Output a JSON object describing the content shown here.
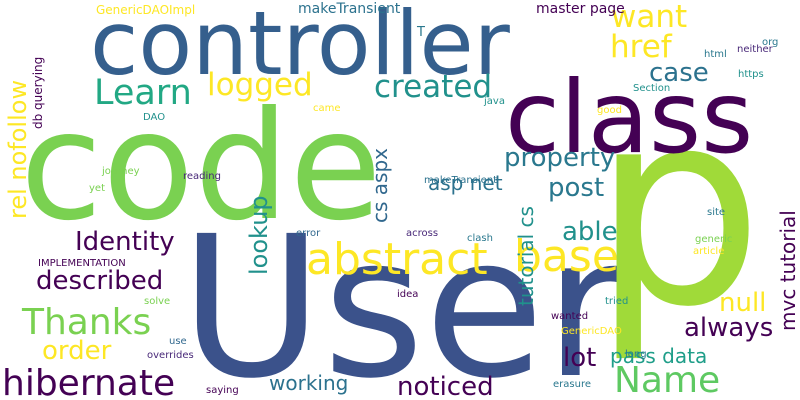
{
  "words": [
    {
      "text": "code",
      "color": "#7ad151",
      "vertical": false
    },
    {
      "text": "User",
      "color": "#3b528b",
      "vertical": false
    },
    {
      "text": "p",
      "color": "#a0da39",
      "vertical": false
    },
    {
      "text": "controller",
      "color": "#355f8d",
      "vertical": false
    },
    {
      "text": "class",
      "color": "#440154",
      "vertical": false
    },
    {
      "text": "abstract",
      "color": "#fde725",
      "vertical": false
    },
    {
      "text": "base",
      "color": "#fde725",
      "vertical": false
    },
    {
      "text": "hibernate",
      "color": "#440154",
      "vertical": false
    },
    {
      "text": "Name",
      "color": "#5ec962",
      "vertical": false
    },
    {
      "text": "Thanks",
      "color": "#7ad151",
      "vertical": false
    },
    {
      "text": "Learn",
      "color": "#22a884",
      "vertical": false
    },
    {
      "text": "logged",
      "color": "#fde725",
      "vertical": false
    },
    {
      "text": "created",
      "color": "#21918c",
      "vertical": false
    },
    {
      "text": "want",
      "color": "#fde725",
      "vertical": false
    },
    {
      "text": "href",
      "color": "#fde725",
      "vertical": false
    },
    {
      "text": "case",
      "color": "#2c728e",
      "vertical": false
    },
    {
      "text": "property",
      "color": "#2a788e",
      "vertical": false
    },
    {
      "text": "post",
      "color": "#2a788e",
      "vertical": false
    },
    {
      "text": "Identity",
      "color": "#440154",
      "vertical": false
    },
    {
      "text": "described",
      "color": "#440154",
      "vertical": false
    },
    {
      "text": "able",
      "color": "#21918c",
      "vertical": false
    },
    {
      "text": "noticed",
      "color": "#440154",
      "vertical": false
    },
    {
      "text": "always",
      "color": "#440154",
      "vertical": false
    },
    {
      "text": "order",
      "color": "#fde725",
      "vertical": false
    },
    {
      "text": "null",
      "color": "#fde725",
      "vertical": false
    },
    {
      "text": "lot",
      "color": "#440154",
      "vertical": false
    },
    {
      "text": "working",
      "color": "#2c728e",
      "vertical": false
    },
    {
      "text": "asp net",
      "color": "#2c728e",
      "vertical": false
    },
    {
      "text": "pass data",
      "color": "#1f9e89",
      "vertical": false
    },
    {
      "text": "rel nofollow",
      "color": "#fde725",
      "vertical": true
    },
    {
      "text": "lookup",
      "color": "#21918c",
      "vertical": true
    },
    {
      "text": "cs aspx",
      "color": "#31688e",
      "vertical": true
    },
    {
      "text": "tutorial cs",
      "color": "#21918c",
      "vertical": true
    },
    {
      "text": "mvc tutorial",
      "color": "#440154",
      "vertical": true
    },
    {
      "text": "db querying",
      "color": "#440154",
      "vertical": true
    },
    {
      "text": "makeTransient",
      "color": "#2c728e",
      "vertical": false
    },
    {
      "text": "master page",
      "color": "#440154",
      "vertical": false
    },
    {
      "text": "GenericDAOImpl",
      "color": "#fde725",
      "vertical": false
    },
    {
      "text": "T",
      "color": "#2a788e",
      "vertical": false
    },
    {
      "text": "org",
      "color": "#2a788e",
      "vertical": false
    },
    {
      "text": "html",
      "color": "#2a788e",
      "vertical": false
    },
    {
      "text": "neither",
      "color": "#482878",
      "vertical": false
    },
    {
      "text": "https",
      "color": "#21918c",
      "vertical": false
    },
    {
      "text": "Section",
      "color": "#21918c",
      "vertical": false
    },
    {
      "text": "good",
      "color": "#fde725",
      "vertical": false
    },
    {
      "text": "java",
      "color": "#21918c",
      "vertical": false
    },
    {
      "text": "came",
      "color": "#fde725",
      "vertical": false
    },
    {
      "text": "DAO",
      "color": "#21918c",
      "vertical": false
    },
    {
      "text": "journey",
      "color": "#7ad151",
      "vertical": false
    },
    {
      "text": "reading",
      "color": "#482878",
      "vertical": false
    },
    {
      "text": "yet",
      "color": "#7ad151",
      "vertical": false
    },
    {
      "text": "makeTransient",
      "color": "#2c728e",
      "vertical": false
    },
    {
      "text": "error",
      "color": "#31688e",
      "vertical": false
    },
    {
      "text": "across",
      "color": "#482878",
      "vertical": false
    },
    {
      "text": "clash",
      "color": "#2a788e",
      "vertical": false
    },
    {
      "text": "site",
      "color": "#2a788e",
      "vertical": false
    },
    {
      "text": "generic",
      "color": "#7ad151",
      "vertical": false
    },
    {
      "text": "article",
      "color": "#fde725",
      "vertical": false
    },
    {
      "text": "IMPLEMENTATION",
      "color": "#440154",
      "vertical": false
    },
    {
      "text": "solve",
      "color": "#7ad151",
      "vertical": false
    },
    {
      "text": "idea",
      "color": "#440154",
      "vertical": false
    },
    {
      "text": "tried",
      "color": "#21918c",
      "vertical": false
    },
    {
      "text": "wanted",
      "color": "#440154",
      "vertical": false
    },
    {
      "text": "GenericDAO",
      "color": "#fde725",
      "vertical": false
    },
    {
      "text": "use",
      "color": "#31688e",
      "vertical": false
    },
    {
      "text": "overrides",
      "color": "#482878",
      "vertical": false
    },
    {
      "text": "long",
      "color": "#2a788e",
      "vertical": false
    },
    {
      "text": "saying",
      "color": "#440154",
      "vertical": false
    },
    {
      "text": "erasure",
      "color": "#2a788e",
      "vertical": false
    }
  ]
}
